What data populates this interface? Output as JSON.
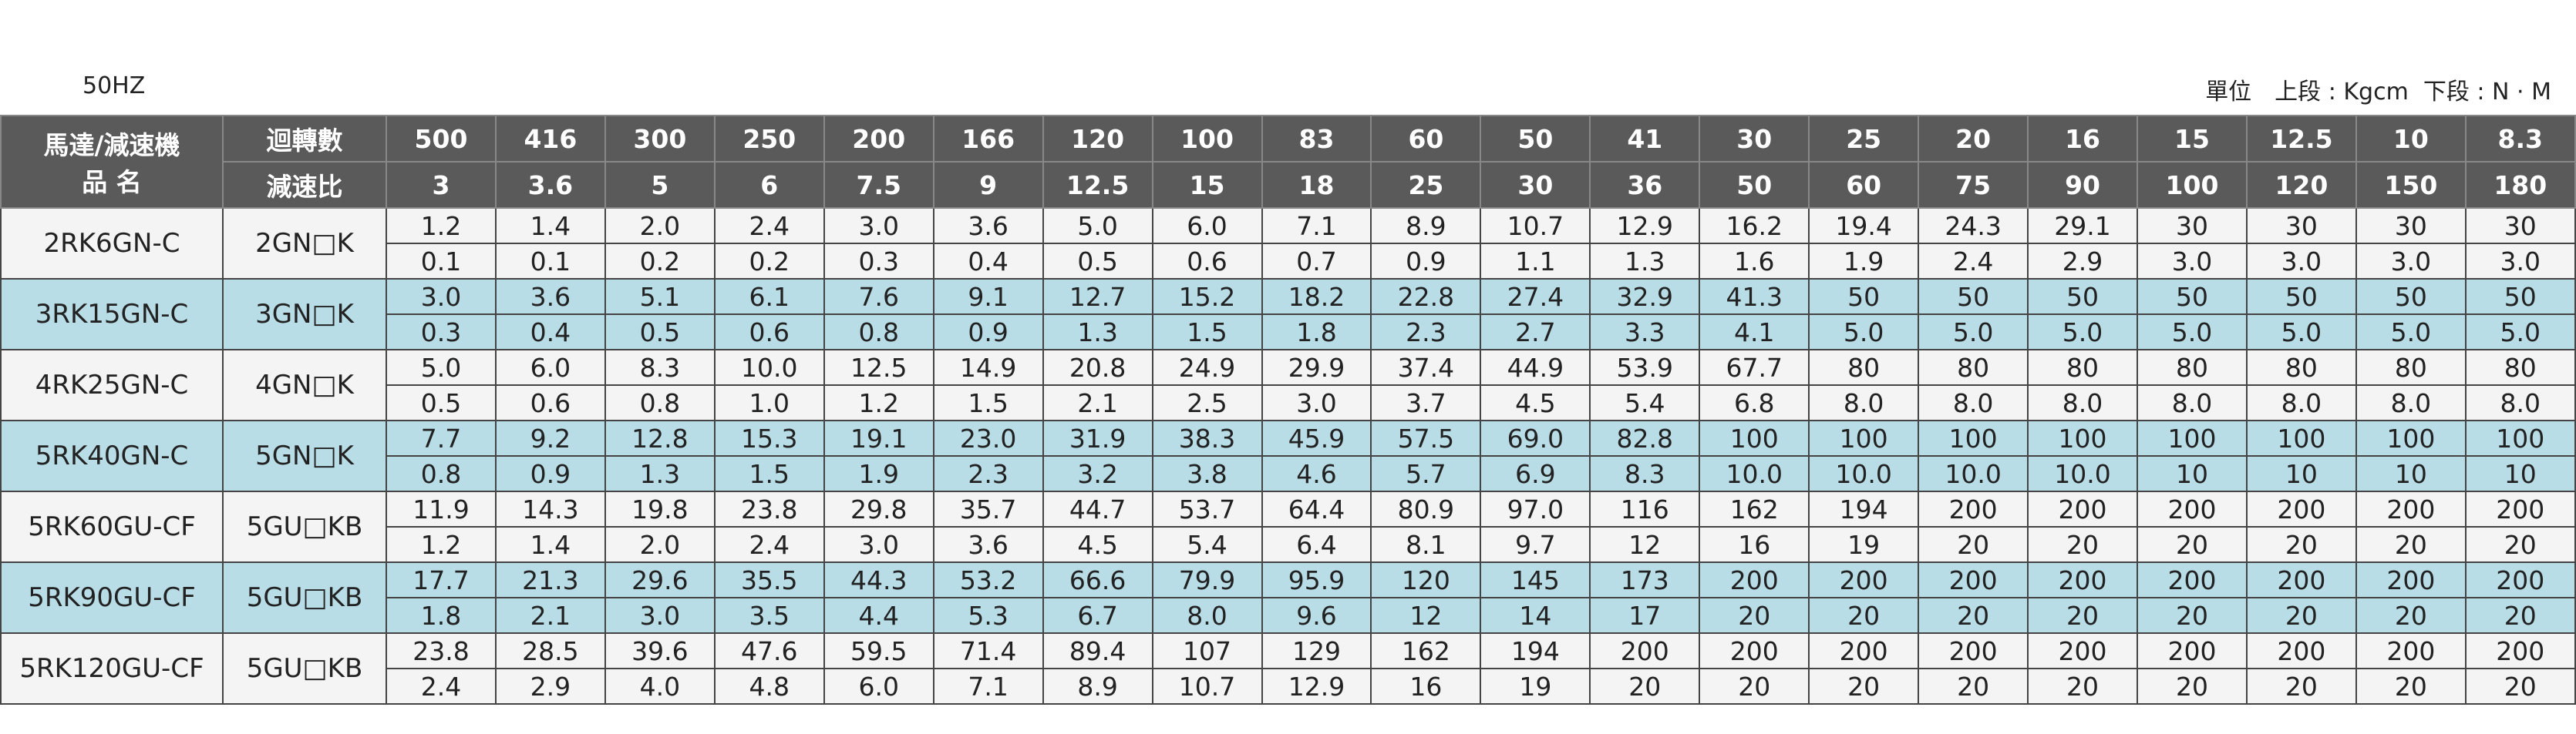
{
  "header": {
    "frequency": "50HZ",
    "unit": "單位　上段 : Kgcm  下段 : N · M"
  },
  "table": {
    "corner": [
      "馬達/減速機",
      "品 名"
    ],
    "speed_label": "迴轉數",
    "ratio_label": "減速比",
    "speeds": [
      "500",
      "416",
      "300",
      "250",
      "200",
      "166",
      "120",
      "100",
      "83",
      "60",
      "50",
      "41",
      "30",
      "25",
      "20",
      "16",
      "15",
      "12.5",
      "10",
      "8.3"
    ],
    "ratios": [
      "3",
      "3.6",
      "5",
      "6",
      "7.5",
      "9",
      "12.5",
      "15",
      "18",
      "25",
      "30",
      "36",
      "50",
      "60",
      "75",
      "90",
      "100",
      "120",
      "150",
      "180"
    ],
    "rows": [
      {
        "motor": "2RK6GN-C",
        "gear": "2GN□K",
        "upper": [
          "1.2",
          "1.4",
          "2.0",
          "2.4",
          "3.0",
          "3.6",
          "5.0",
          "6.0",
          "7.1",
          "8.9",
          "10.7",
          "12.9",
          "16.2",
          "19.4",
          "24.3",
          "29.1",
          "30",
          "30",
          "30",
          "30"
        ],
        "lower": [
          "0.1",
          "0.1",
          "0.2",
          "0.2",
          "0.3",
          "0.4",
          "0.5",
          "0.6",
          "0.7",
          "0.9",
          "1.1",
          "1.3",
          "1.6",
          "1.9",
          "2.4",
          "2.9",
          "3.0",
          "3.0",
          "3.0",
          "3.0"
        ]
      },
      {
        "motor": "3RK15GN-C",
        "gear": "3GN□K",
        "upper": [
          "3.0",
          "3.6",
          "5.1",
          "6.1",
          "7.6",
          "9.1",
          "12.7",
          "15.2",
          "18.2",
          "22.8",
          "27.4",
          "32.9",
          "41.3",
          "50",
          "50",
          "50",
          "50",
          "50",
          "50",
          "50"
        ],
        "lower": [
          "0.3",
          "0.4",
          "0.5",
          "0.6",
          "0.8",
          "0.9",
          "1.3",
          "1.5",
          "1.8",
          "2.3",
          "2.7",
          "3.3",
          "4.1",
          "5.0",
          "5.0",
          "5.0",
          "5.0",
          "5.0",
          "5.0",
          "5.0"
        ]
      },
      {
        "motor": "4RK25GN-C",
        "gear": "4GN□K",
        "upper": [
          "5.0",
          "6.0",
          "8.3",
          "10.0",
          "12.5",
          "14.9",
          "20.8",
          "24.9",
          "29.9",
          "37.4",
          "44.9",
          "53.9",
          "67.7",
          "80",
          "80",
          "80",
          "80",
          "80",
          "80",
          "80"
        ],
        "lower": [
          "0.5",
          "0.6",
          "0.8",
          "1.0",
          "1.2",
          "1.5",
          "2.1",
          "2.5",
          "3.0",
          "3.7",
          "4.5",
          "5.4",
          "6.8",
          "8.0",
          "8.0",
          "8.0",
          "8.0",
          "8.0",
          "8.0",
          "8.0"
        ]
      },
      {
        "motor": "5RK40GN-C",
        "gear": "5GN□K",
        "upper": [
          "7.7",
          "9.2",
          "12.8",
          "15.3",
          "19.1",
          "23.0",
          "31.9",
          "38.3",
          "45.9",
          "57.5",
          "69.0",
          "82.8",
          "100",
          "100",
          "100",
          "100",
          "100",
          "100",
          "100",
          "100"
        ],
        "lower": [
          "0.8",
          "0.9",
          "1.3",
          "1.5",
          "1.9",
          "2.3",
          "3.2",
          "3.8",
          "4.6",
          "5.7",
          "6.9",
          "8.3",
          "10.0",
          "10.0",
          "10.0",
          "10.0",
          "10",
          "10",
          "10",
          "10"
        ]
      },
      {
        "motor": "5RK60GU-CF",
        "gear": "5GU□KB",
        "upper": [
          "11.9",
          "14.3",
          "19.8",
          "23.8",
          "29.8",
          "35.7",
          "44.7",
          "53.7",
          "64.4",
          "80.9",
          "97.0",
          "116",
          "162",
          "194",
          "200",
          "200",
          "200",
          "200",
          "200",
          "200"
        ],
        "lower": [
          "1.2",
          "1.4",
          "2.0",
          "2.4",
          "3.0",
          "3.6",
          "4.5",
          "5.4",
          "6.4",
          "8.1",
          "9.7",
          "12",
          "16",
          "19",
          "20",
          "20",
          "20",
          "20",
          "20",
          "20"
        ]
      },
      {
        "motor": "5RK90GU-CF",
        "gear": "5GU□KB",
        "upper": [
          "17.7",
          "21.3",
          "29.6",
          "35.5",
          "44.3",
          "53.2",
          "66.6",
          "79.9",
          "95.9",
          "120",
          "145",
          "173",
          "200",
          "200",
          "200",
          "200",
          "200",
          "200",
          "200",
          "200"
        ],
        "lower": [
          "1.8",
          "2.1",
          "3.0",
          "3.5",
          "4.4",
          "5.3",
          "6.7",
          "8.0",
          "9.6",
          "12",
          "14",
          "17",
          "20",
          "20",
          "20",
          "20",
          "20",
          "20",
          "20",
          "20"
        ]
      },
      {
        "motor": "5RK120GU-CF",
        "gear": "5GU□KB",
        "upper": [
          "23.8",
          "28.5",
          "39.6",
          "47.6",
          "59.5",
          "71.4",
          "89.4",
          "107",
          "129",
          "162",
          "194",
          "200",
          "200",
          "200",
          "200",
          "200",
          "200",
          "200",
          "200",
          "200"
        ],
        "lower": [
          "2.4",
          "2.9",
          "4.0",
          "4.8",
          "6.0",
          "7.1",
          "8.9",
          "10.7",
          "12.9",
          "16",
          "19",
          "20",
          "20",
          "20",
          "20",
          "20",
          "20",
          "20",
          "20",
          "20"
        ]
      }
    ]
  }
}
